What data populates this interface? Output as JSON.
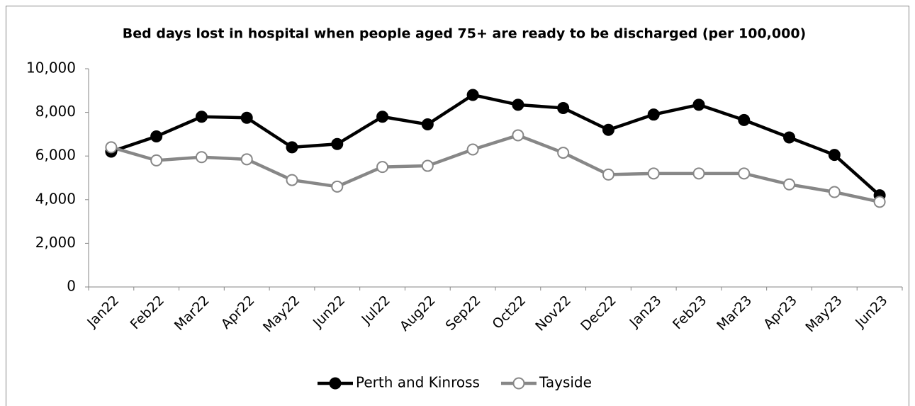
{
  "chart_data": {
    "type": "line",
    "title": "Bed days lost in hospital when people aged 75+ are ready to be discharged (per 100,000)",
    "categories": [
      "Jan22",
      "Feb22",
      "Mar22",
      "Apr22",
      "May22",
      "Jun22",
      "Jul22",
      "Aug22",
      "Sep22",
      "Oct22",
      "Nov22",
      "Dec22",
      "Jan23",
      "Feb23",
      "Mar23",
      "Apr23",
      "May23",
      "Jun23"
    ],
    "series": [
      {
        "name": "Perth and Kinross",
        "color": "#000000",
        "marker_fill": "#000000",
        "values": [
          6200,
          6900,
          7800,
          7750,
          6400,
          6550,
          7800,
          7450,
          8800,
          8350,
          8200,
          7200,
          7900,
          8350,
          7650,
          6850,
          6050,
          4200
        ]
      },
      {
        "name": "Tayside",
        "color": "#878787",
        "marker_fill": "#ffffff",
        "values": [
          6400,
          5800,
          5950,
          5850,
          4900,
          4600,
          5500,
          5550,
          6300,
          6950,
          6150,
          5150,
          5200,
          5200,
          5200,
          4700,
          4350,
          3900
        ]
      }
    ],
    "ylim": [
      0,
      10000
    ],
    "yticks": [
      0,
      {
        "value": 2000,
        "label": "2,000"
      },
      {
        "value": 4000,
        "label": "4,000"
      },
      {
        "value": 6000,
        "label": "6,000"
      },
      {
        "value": 8000,
        "label": "8,000"
      },
      {
        "value": 10000,
        "label": "10,000"
      }
    ],
    "grid": false,
    "legend": "bottom"
  }
}
